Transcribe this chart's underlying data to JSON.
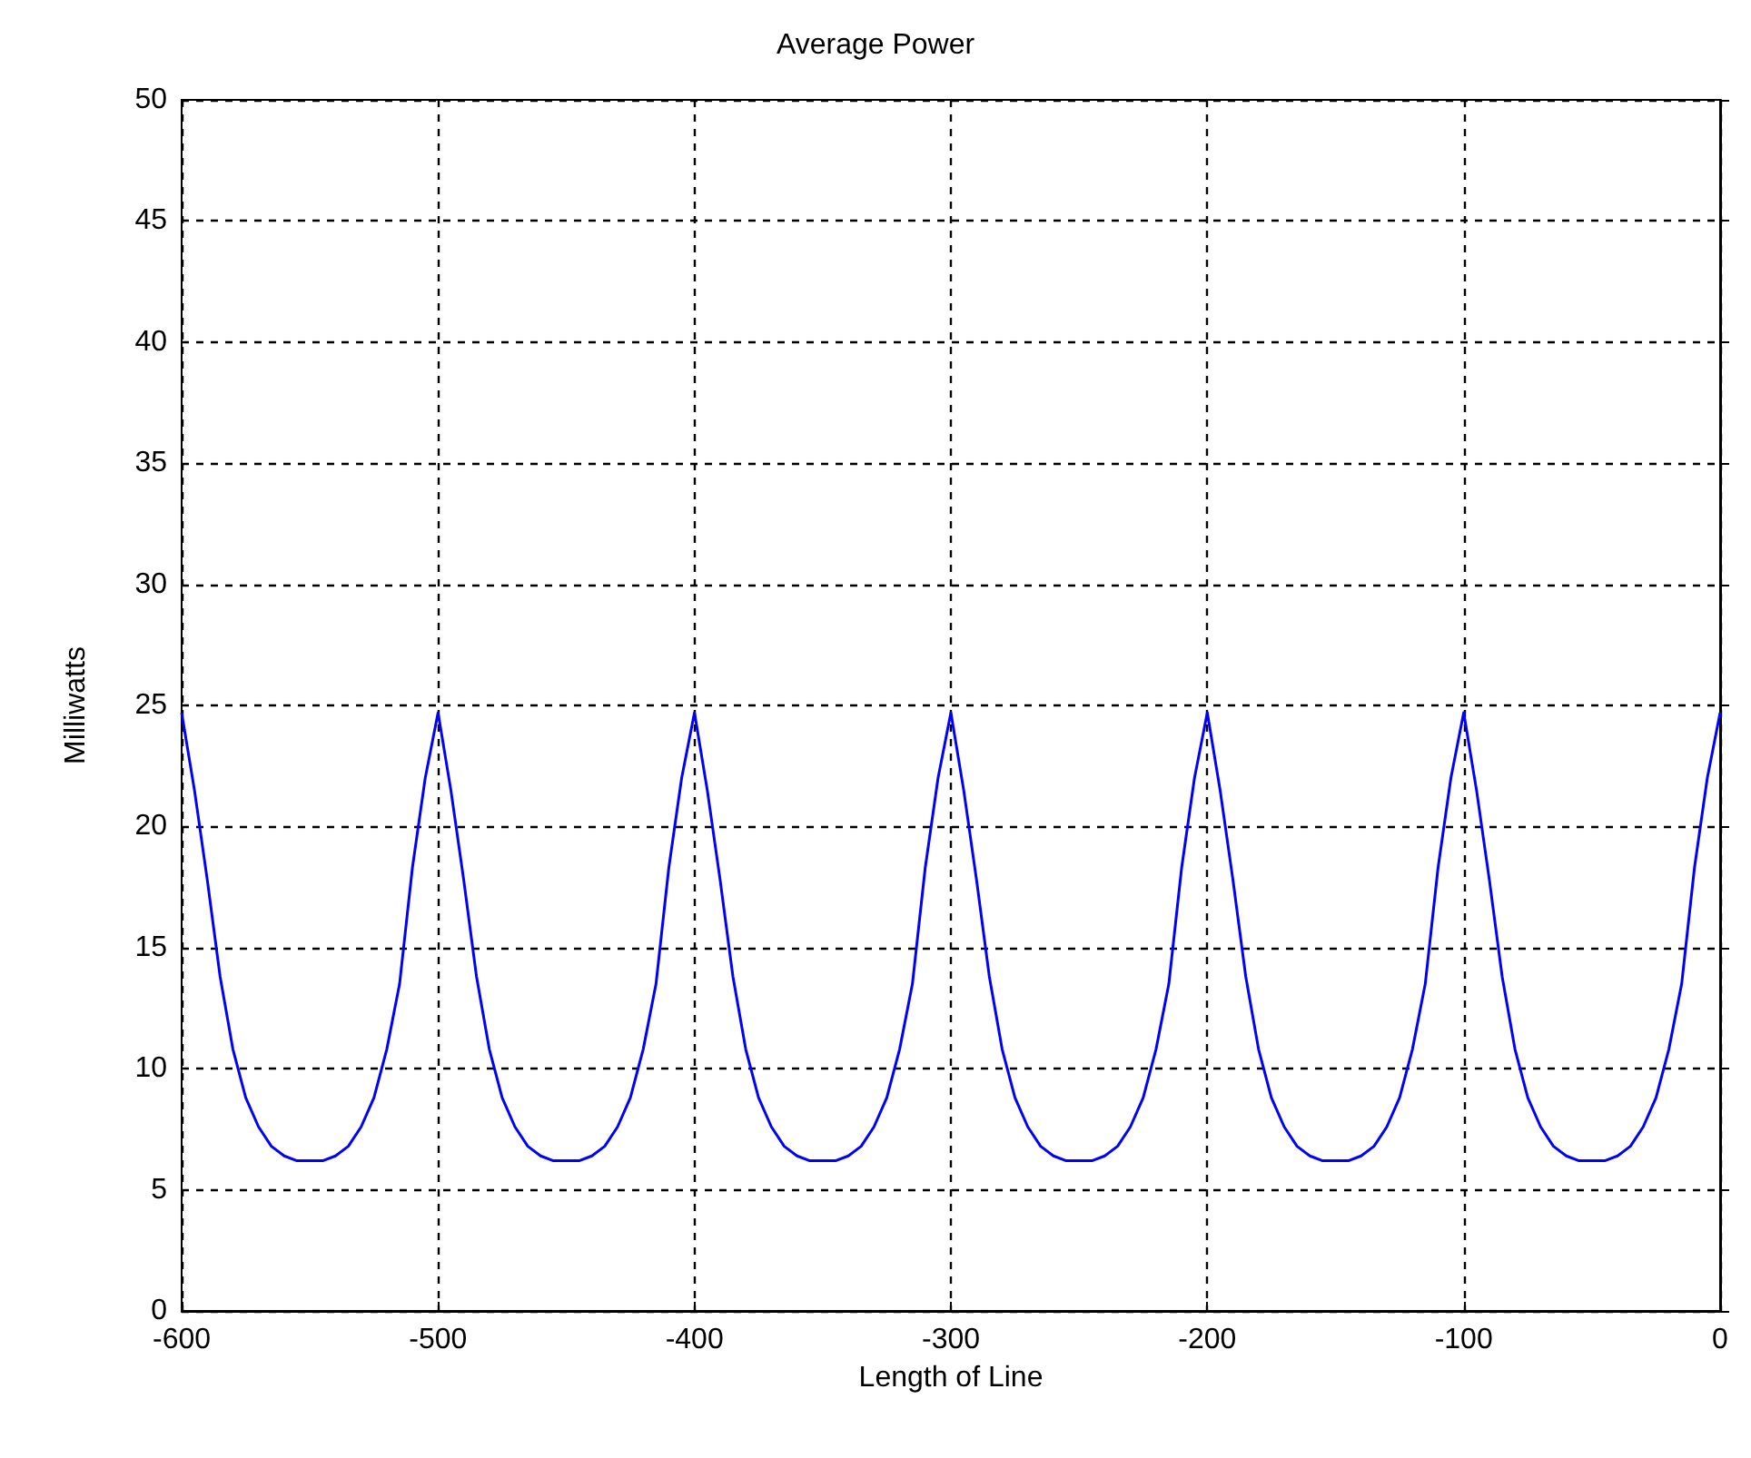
{
  "chart_data": {
    "type": "line",
    "title": "Average Power",
    "xlabel": "Length of Line",
    "ylabel": "Milliwatts",
    "x": [
      -600,
      -595,
      -590,
      -585,
      -580,
      -575,
      -570,
      -565,
      -560,
      -555,
      -550,
      -545,
      -540,
      -535,
      -530,
      -525,
      -520,
      -515,
      -510,
      -505,
      -500,
      -495,
      -490,
      -485,
      -480,
      -475,
      -470,
      -465,
      -460,
      -455,
      -450,
      -445,
      -440,
      -435,
      -430,
      -425,
      -420,
      -415,
      -410,
      -405,
      -400,
      -395,
      -390,
      -385,
      -380,
      -375,
      -370,
      -365,
      -360,
      -355,
      -350,
      -345,
      -340,
      -335,
      -330,
      -325,
      -320,
      -315,
      -310,
      -305,
      -300,
      -295,
      -290,
      -285,
      -280,
      -275,
      -270,
      -265,
      -260,
      -255,
      -250,
      -245,
      -240,
      -235,
      -230,
      -225,
      -220,
      -215,
      -210,
      -205,
      -200,
      -195,
      -190,
      -185,
      -180,
      -175,
      -170,
      -165,
      -160,
      -155,
      -150,
      -145,
      -140,
      -135,
      -130,
      -125,
      -120,
      -115,
      -110,
      -105,
      -100,
      -95,
      -90,
      -85,
      -80,
      -75,
      -70,
      -65,
      -60,
      -55,
      -50,
      -45,
      -40,
      -35,
      -30,
      -25,
      -20,
      -15,
      -10,
      -5,
      0
    ],
    "series": [
      {
        "color": "#0000ff",
        "values": [
          24.7,
          21.5,
          17.8,
          13.8,
          10.8,
          8.8,
          7.6,
          6.8,
          6.4,
          6.2,
          6.2,
          6.2,
          6.4,
          6.8,
          7.6,
          8.8,
          10.8,
          13.5,
          18.3,
          22,
          24.7,
          21.5,
          17.8,
          13.8,
          10.8,
          8.8,
          7.6,
          6.8,
          6.4,
          6.2,
          6.2,
          6.2,
          6.4,
          6.8,
          7.6,
          8.8,
          10.8,
          13.5,
          18.3,
          22,
          24.7,
          21.5,
          17.8,
          13.8,
          10.8,
          8.8,
          7.6,
          6.8,
          6.4,
          6.2,
          6.2,
          6.2,
          6.4,
          6.8,
          7.6,
          8.8,
          10.8,
          13.5,
          18.3,
          22,
          24.7,
          21.5,
          17.8,
          13.8,
          10.8,
          8.8,
          7.6,
          6.8,
          6.4,
          6.2,
          6.2,
          6.2,
          6.4,
          6.8,
          7.6,
          8.8,
          10.8,
          13.5,
          18.3,
          22,
          24.7,
          21.5,
          17.8,
          13.8,
          10.8,
          8.8,
          7.6,
          6.8,
          6.4,
          6.2,
          6.2,
          6.2,
          6.4,
          6.8,
          7.6,
          8.8,
          10.8,
          13.5,
          18.3,
          22,
          24.7,
          21.5,
          17.8,
          13.8,
          10.8,
          8.8,
          7.6,
          6.8,
          6.4,
          6.2,
          6.2,
          6.2,
          6.4,
          6.8,
          7.6,
          8.8,
          10.8,
          13.5,
          18.3,
          22,
          24.7
        ]
      }
    ],
    "xlim": [
      -600,
      0
    ],
    "xticks": [
      -600,
      -500,
      -400,
      -300,
      -200,
      -100,
      0
    ],
    "ylim": [
      0,
      50
    ],
    "yticks": [
      0,
      5,
      10,
      15,
      20,
      25,
      30,
      35,
      40,
      45,
      50
    ],
    "grid": true,
    "marker": "none",
    "line_style": "solid"
  }
}
